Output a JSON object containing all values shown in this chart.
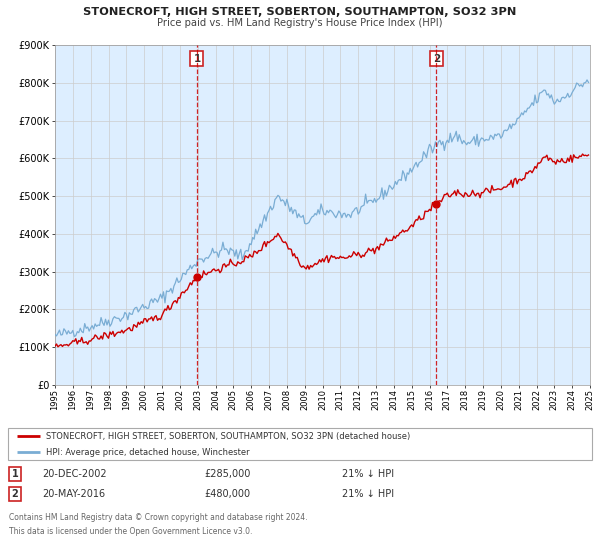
{
  "title1": "STONECROFT, HIGH STREET, SOBERTON, SOUTHAMPTON, SO32 3PN",
  "title2": "Price paid vs. HM Land Registry's House Price Index (HPI)",
  "red_label": "STONECROFT, HIGH STREET, SOBERTON, SOUTHAMPTON, SO32 3PN (detached house)",
  "blue_label": "HPI: Average price, detached house, Winchester",
  "sale1_date": "20-DEC-2002",
  "sale1_price": "£285,000",
  "sale1_pct": "21% ↓ HPI",
  "sale2_date": "20-MAY-2016",
  "sale2_price": "£480,000",
  "sale2_pct": "21% ↓ HPI",
  "footnote1": "Contains HM Land Registry data © Crown copyright and database right 2024.",
  "footnote2": "This data is licensed under the Open Government Licence v3.0.",
  "ylim_min": 0,
  "ylim_max": 900000,
  "sale1_year": 2002.96,
  "sale2_year": 2016.38,
  "red_color": "#cc0000",
  "blue_color": "#7aadd4",
  "vline_color": "#cc0000",
  "dot_color": "#cc0000",
  "grid_color": "#cccccc",
  "bg_color": "#ddeeff",
  "box_color": "#cc2222",
  "title_color": "#222222",
  "subtitle_color": "#444444",
  "text_color": "#333333",
  "footnote_color": "#666666"
}
